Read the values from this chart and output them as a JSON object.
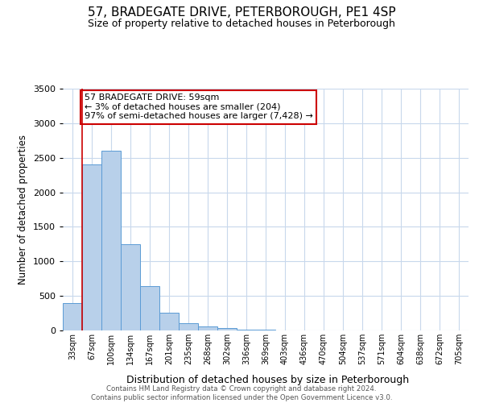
{
  "title": "57, BRADEGATE DRIVE, PETERBOROUGH, PE1 4SP",
  "subtitle": "Size of property relative to detached houses in Peterborough",
  "xlabel": "Distribution of detached houses by size in Peterborough",
  "ylabel": "Number of detached properties",
  "categories": [
    "33sqm",
    "67sqm",
    "100sqm",
    "134sqm",
    "167sqm",
    "201sqm",
    "235sqm",
    "268sqm",
    "302sqm",
    "336sqm",
    "369sqm",
    "403sqm",
    "436sqm",
    "470sqm",
    "504sqm",
    "537sqm",
    "571sqm",
    "604sqm",
    "638sqm",
    "672sqm",
    "705sqm"
  ],
  "values": [
    400,
    2400,
    2600,
    1250,
    640,
    260,
    100,
    55,
    30,
    15,
    8,
    5,
    3,
    2,
    1,
    1,
    1,
    1,
    0,
    0,
    0
  ],
  "bar_color": "#b8d0ea",
  "bar_edge_color": "#5b9bd5",
  "ylim": [
    0,
    3500
  ],
  "yticks": [
    0,
    500,
    1000,
    1500,
    2000,
    2500,
    3000,
    3500
  ],
  "annotation_title": "57 BRADEGATE DRIVE: 59sqm",
  "annotation_line1": "← 3% of detached houses are smaller (204)",
  "annotation_line2": "97% of semi-detached houses are larger (7,428) →",
  "annotation_box_color": "#ffffff",
  "annotation_box_edge": "#cc0000",
  "footer_line1": "Contains HM Land Registry data © Crown copyright and database right 2024.",
  "footer_line2": "Contains public sector information licensed under the Open Government Licence v3.0.",
  "red_line_color": "#cc0000",
  "background_color": "#ffffff",
  "grid_color": "#c8d8ec"
}
